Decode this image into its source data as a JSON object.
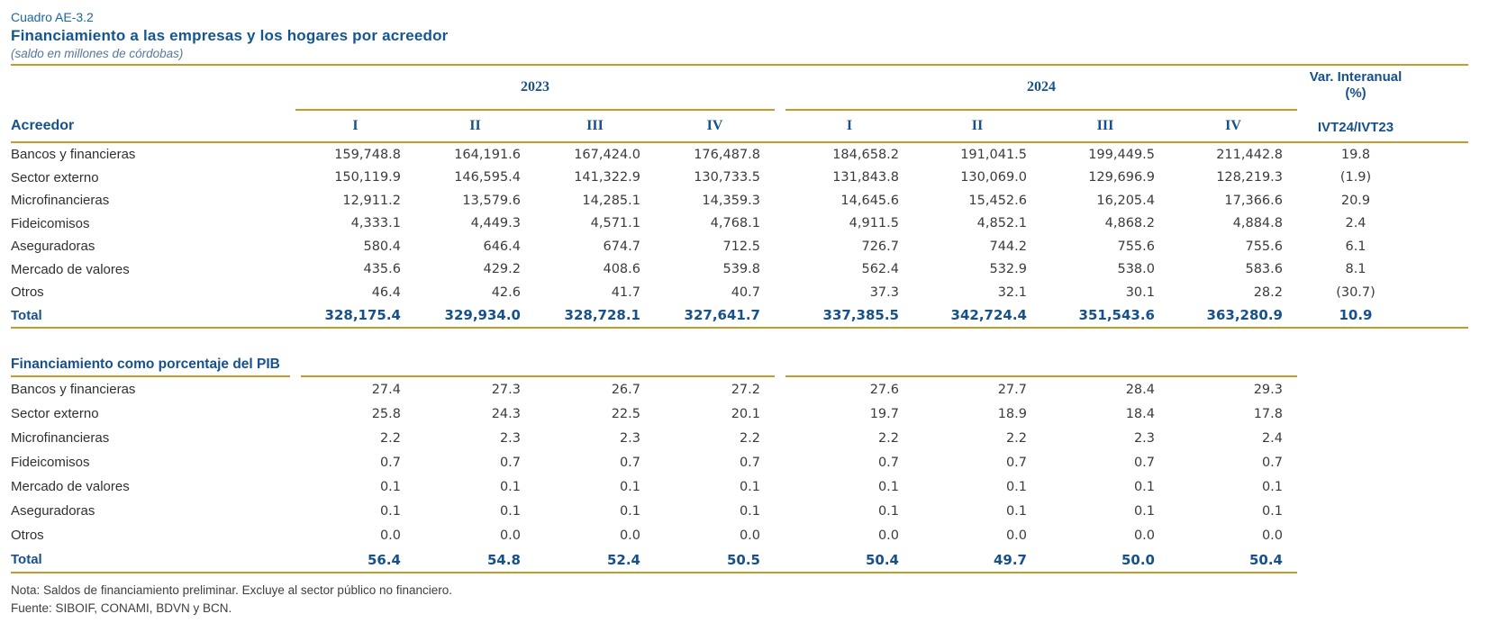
{
  "page": {
    "cuadro_label": "Cuadro AE-3.2",
    "title": "Financiamiento a las empresas y los hogares por acreedor",
    "subtitle": "(saldo en millones de córdobas)"
  },
  "colors": {
    "title_blue": "#1C66A0",
    "header_blue": "#17518C",
    "gold_line": "#C9992B",
    "body_text": "#3B3B3B"
  },
  "header": {
    "acreedor_label": "Acreedor",
    "year_groups": [
      {
        "label": "2023",
        "quarters": [
          "I",
          "II",
          "III",
          "IV"
        ]
      },
      {
        "label": "2024",
        "quarters": [
          "I",
          "II",
          "III",
          "IV"
        ]
      }
    ],
    "var_label_line1": "Var. Interanual",
    "var_label_line2": "(%)",
    "var_sub_label": "IVT24/IVT23"
  },
  "sections": [
    {
      "name": "saldos",
      "rows": [
        {
          "label": "Bancos y financieras",
          "values": [
            "159,748.8",
            "164,191.6",
            "167,424.0",
            "176,487.8",
            "184,658.2",
            "191,041.5",
            "199,449.5",
            "211,442.8"
          ],
          "var": "19.8"
        },
        {
          "label": "Sector externo",
          "values": [
            "150,119.9",
            "146,595.4",
            "141,322.9",
            "130,733.5",
            "131,843.8",
            "130,069.0",
            "129,696.9",
            "128,219.3"
          ],
          "var": "(1.9)"
        },
        {
          "label": "Microfinancieras",
          "values": [
            "12,911.2",
            "13,579.6",
            "14,285.1",
            "14,359.3",
            "14,645.6",
            "15,452.6",
            "16,205.4",
            "17,366.6"
          ],
          "var": "20.9"
        },
        {
          "label": "Fideicomisos",
          "values": [
            "4,333.1",
            "4,449.3",
            "4,571.1",
            "4,768.1",
            "4,911.5",
            "4,852.1",
            "4,868.2",
            "4,884.8"
          ],
          "var": "2.4"
        },
        {
          "label": "Aseguradoras",
          "values": [
            "580.4",
            "646.4",
            "674.7",
            "712.5",
            "726.7",
            "744.2",
            "755.6",
            "755.6"
          ],
          "var": "6.1"
        },
        {
          "label": "Mercado de valores",
          "values": [
            "435.6",
            "429.2",
            "408.6",
            "539.8",
            "562.4",
            "532.9",
            "538.0",
            "583.6"
          ],
          "var": "8.1"
        },
        {
          "label": "Otros",
          "values": [
            "46.4",
            "42.6",
            "41.7",
            "40.7",
            "37.3",
            "32.1",
            "30.1",
            "28.2"
          ],
          "var": "(30.7)"
        }
      ],
      "total": {
        "label": "Total",
        "values": [
          "328,175.4",
          "329,934.0",
          "328,728.1",
          "327,641.7",
          "337,385.5",
          "342,724.4",
          "351,543.6",
          "363,280.9"
        ],
        "var": "10.9"
      }
    },
    {
      "name": "pib",
      "heading": "Financiamiento como porcentaje del PIB",
      "rows": [
        {
          "label": "Bancos y financieras",
          "values": [
            "27.4",
            "27.3",
            "26.7",
            "27.2",
            "27.6",
            "27.7",
            "28.4",
            "29.3"
          ],
          "var": ""
        },
        {
          "label": "Sector externo",
          "values": [
            "25.8",
            "24.3",
            "22.5",
            "20.1",
            "19.7",
            "18.9",
            "18.4",
            "17.8"
          ],
          "var": ""
        },
        {
          "label": "Microfinancieras",
          "values": [
            "2.2",
            "2.3",
            "2.3",
            "2.2",
            "2.2",
            "2.2",
            "2.3",
            "2.4"
          ],
          "var": ""
        },
        {
          "label": "Fideicomisos",
          "values": [
            "0.7",
            "0.7",
            "0.7",
            "0.7",
            "0.7",
            "0.7",
            "0.7",
            "0.7"
          ],
          "var": ""
        },
        {
          "label": "Mercado de valores",
          "values": [
            "0.1",
            "0.1",
            "0.1",
            "0.1",
            "0.1",
            "0.1",
            "0.1",
            "0.1"
          ],
          "var": ""
        },
        {
          "label": "Aseguradoras",
          "values": [
            "0.1",
            "0.1",
            "0.1",
            "0.1",
            "0.1",
            "0.1",
            "0.1",
            "0.1"
          ],
          "var": ""
        },
        {
          "label": "Otros",
          "values": [
            "0.0",
            "0.0",
            "0.0",
            "0.0",
            "0.0",
            "0.0",
            "0.0",
            "0.0"
          ],
          "var": ""
        }
      ],
      "total": {
        "label": "Total",
        "values": [
          "56.4",
          "54.8",
          "52.4",
          "50.5",
          "50.4",
          "49.7",
          "50.0",
          "50.4"
        ],
        "var": ""
      }
    }
  ],
  "footer": {
    "nota": "Nota: Saldos de financiamiento preliminar. Excluye al sector público no financiero.",
    "fuente": "Fuente: SIBOIF, CONAMI, BDVN y BCN."
  }
}
